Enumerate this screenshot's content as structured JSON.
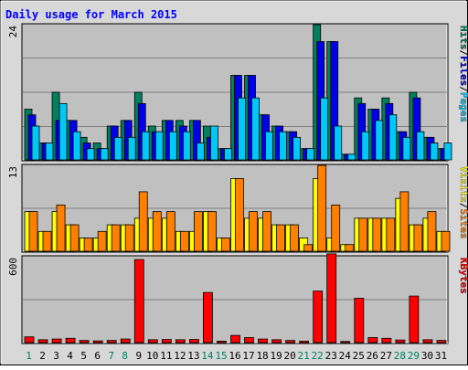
{
  "title": "Daily usage for March 2015",
  "colors": {
    "hits": "#00805c",
    "files": "#0000e8",
    "pages": "#00c8f8",
    "visits": "#ffff00",
    "sites": "#ff8000",
    "kbytes": "#ff0000",
    "panel_bg": "#c0c0c0",
    "frame_bg": "#d8d8d8",
    "title_color": "#0000ff",
    "weekend_label": "#00805c"
  },
  "chart_data": [
    {
      "type": "bar",
      "title": "Daily usage for March 2015",
      "ylim": [
        0,
        24
      ],
      "ytick_label": "24",
      "legend": [
        {
          "name": "Pages",
          "color": "#00c8f8"
        },
        {
          "name": "Files",
          "color": "#0000e8"
        },
        {
          "name": "Hits",
          "color": "#00805c"
        }
      ],
      "legend_separators": [
        "/",
        "/"
      ],
      "x": [
        1,
        2,
        3,
        4,
        5,
        6,
        7,
        8,
        9,
        10,
        11,
        12,
        13,
        14,
        15,
        16,
        17,
        18,
        19,
        20,
        21,
        22,
        23,
        24,
        25,
        26,
        27,
        28,
        29,
        30,
        31
      ],
      "series": [
        {
          "name": "Hits",
          "values": [
            9,
            3,
            12,
            7,
            4,
            3,
            6,
            7,
            12,
            6,
            7,
            7,
            7,
            6,
            2,
            15,
            15,
            8,
            6,
            5,
            2,
            24,
            21,
            1,
            11,
            9,
            11,
            5,
            12,
            4,
            2
          ]
        },
        {
          "name": "Files",
          "values": [
            8,
            3,
            7,
            7,
            3,
            2,
            6,
            7,
            10,
            5,
            7,
            6,
            7,
            4,
            2,
            15,
            15,
            8,
            6,
            5,
            2,
            21,
            21,
            1,
            10,
            9,
            10,
            5,
            11,
            4,
            2
          ]
        },
        {
          "name": "Pages",
          "values": [
            6,
            3,
            10,
            5,
            2,
            2,
            4,
            4,
            5,
            5,
            5,
            5,
            3,
            6,
            2,
            11,
            11,
            5,
            5,
            4,
            2,
            11,
            6,
            1,
            5,
            7,
            8,
            4,
            5,
            3,
            3
          ]
        }
      ]
    },
    {
      "type": "bar",
      "ylim": [
        0,
        13
      ],
      "ytick_label": "13",
      "legend": [
        {
          "name": "Sites",
          "color": "#ff8000"
        },
        {
          "name": "Visits",
          "color": "#ffff00"
        }
      ],
      "legend_separators": [
        "/"
      ],
      "x": [
        1,
        2,
        3,
        4,
        5,
        6,
        7,
        8,
        9,
        10,
        11,
        12,
        13,
        14,
        15,
        16,
        17,
        18,
        19,
        20,
        21,
        22,
        23,
        24,
        25,
        26,
        27,
        28,
        29,
        30,
        31
      ],
      "series": [
        {
          "name": "Visits",
          "values": [
            6,
            3,
            6,
            4,
            2,
            2,
            4,
            4,
            5,
            5,
            5,
            3,
            3,
            6,
            2,
            11,
            5,
            5,
            4,
            4,
            2,
            11,
            2,
            1,
            5,
            5,
            5,
            8,
            4,
            5,
            3
          ]
        },
        {
          "name": "Sites",
          "values": [
            6,
            3,
            7,
            4,
            2,
            3,
            4,
            4,
            9,
            6,
            6,
            3,
            6,
            6,
            2,
            11,
            6,
            6,
            4,
            4,
            1,
            13,
            7,
            1,
            5,
            5,
            5,
            9,
            4,
            6,
            3
          ]
        }
      ]
    },
    {
      "type": "bar",
      "ylim": [
        0,
        600
      ],
      "ytick_label": "600",
      "legend": [
        {
          "name": "KBytes",
          "color": "#ff0000"
        }
      ],
      "legend_separators": [],
      "x": [
        1,
        2,
        3,
        4,
        5,
        6,
        7,
        8,
        9,
        10,
        11,
        12,
        13,
        14,
        15,
        16,
        17,
        18,
        19,
        20,
        21,
        22,
        23,
        24,
        25,
        26,
        27,
        28,
        29,
        30,
        31
      ],
      "series": [
        {
          "name": "KBytes",
          "values": [
            40,
            20,
            25,
            30,
            15,
            12,
            15,
            25,
            580,
            20,
            22,
            20,
            22,
            350,
            10,
            50,
            35,
            25,
            20,
            15,
            10,
            360,
            620,
            8,
            310,
            35,
            30,
            18,
            325,
            20,
            15
          ]
        }
      ]
    }
  ],
  "x_labels": [
    "1",
    "2",
    "3",
    "4",
    "5",
    "6",
    "7",
    "8",
    "9",
    "10",
    "11",
    "12",
    "13",
    "14",
    "15",
    "16",
    "17",
    "18",
    "19",
    "20",
    "21",
    "22",
    "23",
    "24",
    "25",
    "26",
    "27",
    "28",
    "29",
    "30",
    "31"
  ],
  "weekend_days": [
    1,
    7,
    8,
    14,
    15,
    21,
    22,
    28,
    29
  ]
}
